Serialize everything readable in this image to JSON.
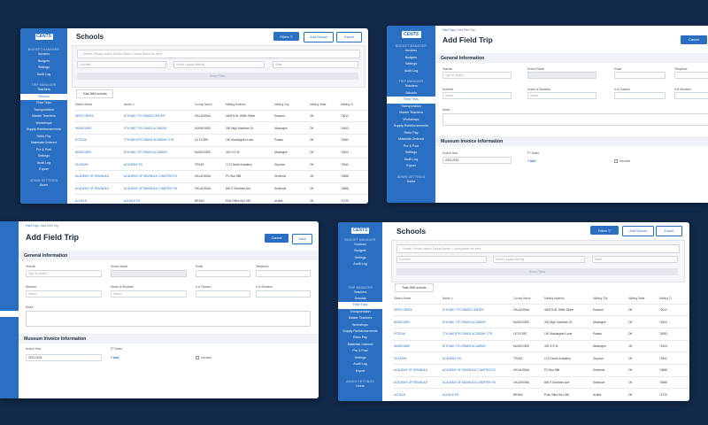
{
  "logo_text": "CENTS",
  "sidebar": {
    "budget_heading": "BUDGET MANAGER",
    "budget_items": [
      "Invoices",
      "Budgets",
      "Settings",
      "Audit Log"
    ],
    "trip_heading": "TRIP MANAGER",
    "trip_items": [
      "Teachers",
      "Schools",
      "Field Trips",
      "Transportation",
      "Master Teachers",
      "Workshops",
      "Supply Reimbursements",
      "Retro Pay",
      "Materials Ordered",
      "Pre & Post",
      "Settings",
      "Audit Log",
      "Export"
    ],
    "admin_heading": "ADMIN SETTINGS",
    "admin_items": [
      "Users"
    ]
  },
  "schools": {
    "title": "Schools",
    "filters_label": "Filters ▽",
    "add_label": "Add School",
    "export_label": "Export",
    "search_placeholder": "Search: Please search District Name, County Name etc here",
    "county_placeholder": "Counties",
    "district_placeholder": "Select Legacy Identify",
    "state_placeholder": "State",
    "reset_label": "Reset Filters",
    "total_label": "Total 1860 schools",
    "columns": [
      "District Name",
      "Name",
      "County Name",
      "Mailing Address",
      "Mailing City",
      "Mailing State",
      "Mailing Zi"
    ],
    "rows": [
      [
        "DEER CREEK",
        "6TH AND 7TH GRADE CENTER",
        "OKLAHOMA",
        "4405 N.W. 208th Street",
        "Edmond",
        "OK",
        "73012"
      ],
      [
        "MUSKOGEE",
        "6TH AND 7TH GRADE ACADEMY",
        "MUSKOGEE",
        "300 High Hawthorn St",
        "Muskogee",
        "OK",
        "74403"
      ],
      [
        "POTEAU",
        "7TH AND 8TH GRADE ACADEMY CTR",
        "LE FLORE",
        "100 Mockingbird Lane",
        "Poteau",
        "OK",
        "74953"
      ],
      [
        "MUSKOGEE",
        "6TH AND 7TH GRADE ACADEMY",
        "MUSKOGEE",
        "402 N S St",
        "Muskogee",
        "OK",
        "74403"
      ],
      [
        "GUYMON",
        "ACADEMY ES",
        "TEXAS",
        "1712 North Academy",
        "Guymon",
        "OK",
        "73942"
      ],
      [
        "ACADEMY OF SEMINOLE",
        "ACADEMY OF SEMINOLE CHARTER ES",
        "OKLAHOMA",
        "PO Box 988",
        "Seminole",
        "OK",
        "74868"
      ],
      [
        "ACADEMY OF SEMINOLE",
        "ACADEMY OF SEMINOLE CHARTER HS",
        "OKLAHOMA",
        "800 E Strothers Ave",
        "Seminole",
        "OK",
        "74868"
      ],
      [
        "ACHILLE",
        "ACHILLE ES",
        "BRYAN",
        "Post Office Box 280",
        "Achille",
        "OK",
        "74720"
      ]
    ]
  },
  "trip": {
    "breadcrumb_parent": "Field Trips",
    "breadcrumb_sep": "/",
    "breadcrumb_current": "Add Field Trip",
    "title": "Add Field Trip",
    "cancel_label": "Cancel",
    "save_label": "Save",
    "general_heading": "General Information",
    "teacher_label": "Teacher",
    "teacher_placeholder": "Type to search...",
    "school_label": "School Name",
    "email_label": "Email",
    "telephone_label": "Telephone",
    "museum_label": "Museum",
    "museum_placeholder": "Select...",
    "grade_label": "Grade of Students",
    "grade_placeholder": "Select...",
    "classes_label": "# of Classes",
    "students_label": "# of Students",
    "notes_label": "Notes",
    "invoice_heading": "Museum Invoice Information",
    "school_year_label": "School Year",
    "school_year_value": "2023-2024",
    "ftdates_label": "FT Dates",
    "add_label": "+ Add",
    "invoiced_label": "Invoiced"
  }
}
